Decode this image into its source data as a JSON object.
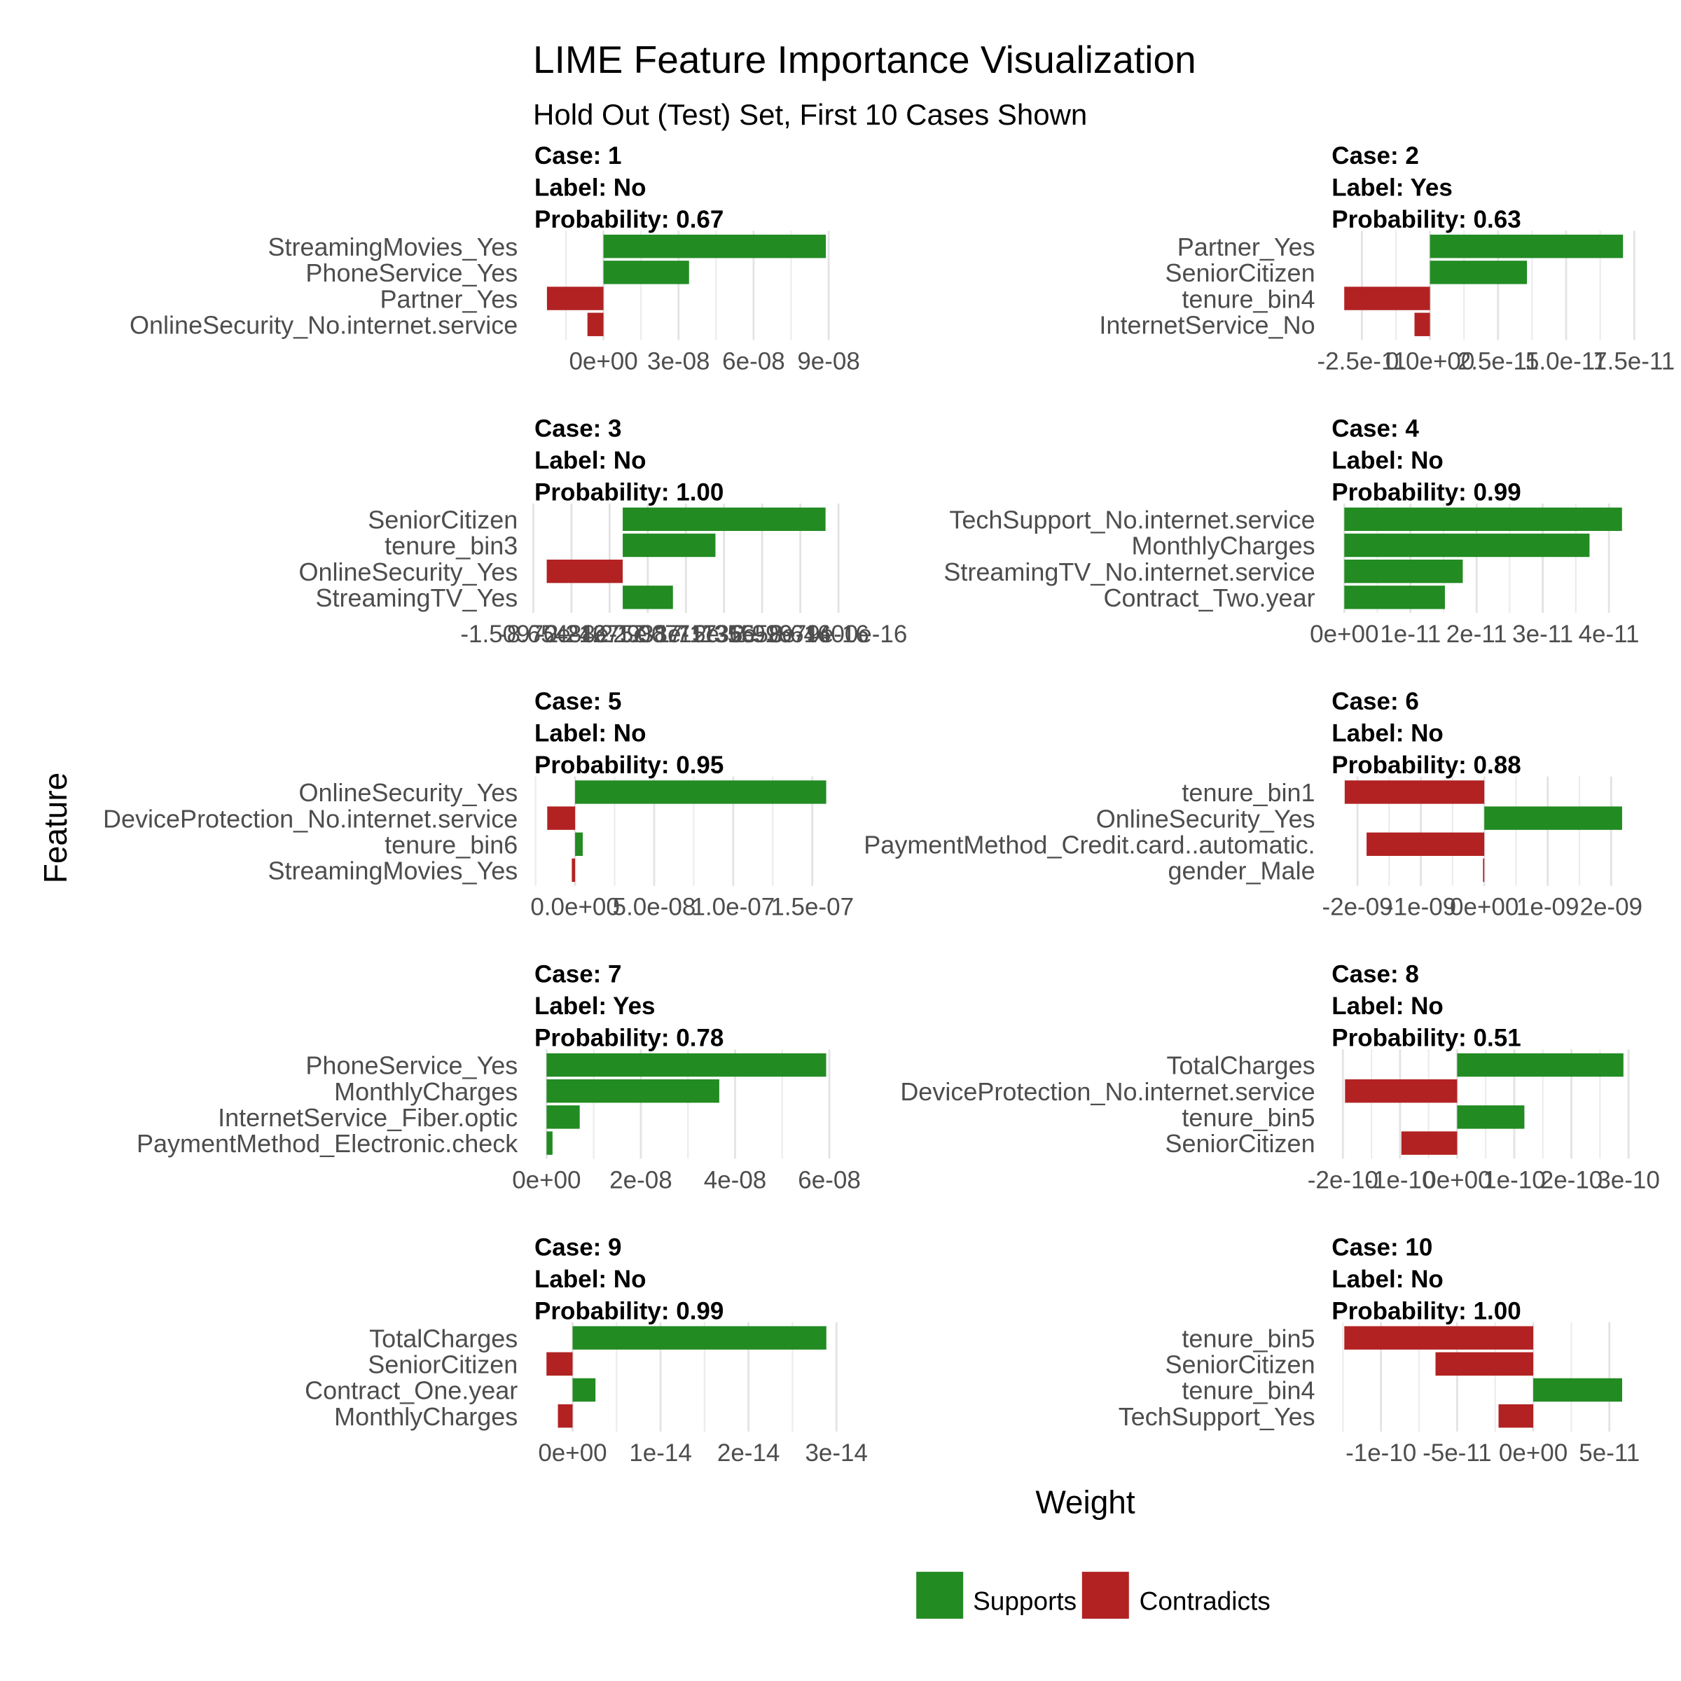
{
  "title": "LIME Feature Importance Visualization",
  "subtitle": "Hold Out (Test) Set, First 10 Cases Shown",
  "x_axis_title": "Weight",
  "y_axis_title": "Feature",
  "legend": {
    "items": [
      {
        "label": "Supports",
        "color": "#228B22"
      },
      {
        "label": "Contradicts",
        "color": "#B22222"
      }
    ]
  },
  "colors": {
    "supports": "#228B22",
    "contradicts": "#B22222",
    "grid_major": "#E3E3E3",
    "grid_minor": "#ECECEC",
    "axis_text": "#4D4D4D",
    "background": "#FFFFFF"
  },
  "chart_data": {
    "type": "bar",
    "orientation": "horizontal",
    "title": "LIME Feature Importance Visualization",
    "subtitle": "Hold Out (Test) Set, First 10 Cases Shown",
    "xlabel": "Weight",
    "ylabel": "Feature",
    "legend_position": "bottom",
    "grid": true,
    "facets": [
      {
        "case": "1",
        "label": "No",
        "probability": "0.67",
        "strip_lines": [
          "Case: 1",
          "Label: No",
          "Probability: 0.67"
        ],
        "features": [
          "StreamingMovies_Yes",
          "PhoneService_Yes",
          "Partner_Yes",
          "OnlineSecurity_No.internet.service"
        ],
        "weights": [
          8.888e-08,
          3.42e-08,
          -2.259e-08,
          -6.41e-09
        ],
        "supports": [
          true,
          true,
          false,
          false
        ],
        "xlim": [
          -2.816e-08,
          9.445e-08
        ],
        "major_breaks": [
          {
            "value": 0,
            "label": "0e+00"
          },
          {
            "value": 3e-08,
            "label": "3e-08"
          },
          {
            "value": 6e-08,
            "label": "6e-08"
          },
          {
            "value": 9e-08,
            "label": "9e-08"
          }
        ],
        "minor_breaks": [
          -1.5e-08,
          1.5e-08,
          4.5e-08,
          7.5e-08
        ]
      },
      {
        "case": "2",
        "label": "Yes",
        "probability": "0.63",
        "strip_lines": [
          "Case: 2",
          "Label: Yes",
          "Probability: 0.63"
        ],
        "features": [
          "Partner_Yes",
          "SeniorCitizen",
          "tenure_bin4",
          "InternetService_No"
        ],
        "weights": [
          7.088e-11,
          3.562e-11,
          -3.148e-11,
          -5.68e-12
        ],
        "supports": [
          true,
          true,
          false,
          false
        ],
        "xlim": [
          -3.66e-11,
          7.605e-11
        ],
        "major_breaks": [
          {
            "value": -2.5e-11,
            "label": "-2.5e-11"
          },
          {
            "value": 0,
            "label": "0.0e+00"
          },
          {
            "value": 2.5e-11,
            "label": "2.5e-11"
          },
          {
            "value": 5e-11,
            "label": "5.0e-11"
          },
          {
            "value": 7.5e-11,
            "label": "7.5e-11"
          }
        ],
        "minor_breaks": [
          -1.25e-11,
          1.25e-11,
          3.75e-11,
          6.25e-11
        ]
      },
      {
        "case": "3",
        "label": "No",
        "probability": "1.00",
        "strip_lines": [
          "Case: 3",
          "Label: No",
          "Probability: 1.00"
        ],
        "features": [
          "SeniorCitizen",
          "tenure_bin3",
          "OnlineSecurity_Yes",
          "StreamingTV_Yes"
        ],
        "weights": [
          3.426e-16,
          1.566e-16,
          -1.284e-16,
          8.48e-17
        ],
        "supports": [
          true,
          true,
          false,
          true
        ],
        "xlim": [
          -1.5155e-16,
          3.667e-16
        ],
        "major_breaks": [
          {
            "value": -1.5097e-16,
            "label": "-1.50970e-16"
          },
          {
            "value": -8.65488e-17,
            "label": "-8.65488e-17"
          },
          {
            "value": -2.21275e-17,
            "label": "-2.21275e-17"
          },
          {
            "value": 4.22938e-17,
            "label": "4.22938e-17"
          },
          {
            "value": 1.06715e-16,
            "label": "1.06715e-16"
          },
          {
            "value": 1.71136e-16,
            "label": "1.71136e-16"
          },
          {
            "value": 2.35558e-16,
            "label": "2.35558e-16"
          },
          {
            "value": 2.99979e-16,
            "label": "2.99979e-16"
          },
          {
            "value": 3.644e-16,
            "label": "3.64400e-16"
          }
        ],
        "minor_breaks": []
      },
      {
        "case": "4",
        "label": "No",
        "probability": "0.99",
        "strip_lines": [
          "Case: 4",
          "Label: No",
          "Probability: 0.99"
        ],
        "features": [
          "TechSupport_No.internet.service",
          "MonthlyCharges",
          "StreamingTV_No.internet.service",
          "Contract_Two.year"
        ],
        "weights": [
          4.198e-11,
          3.707e-11,
          1.791e-11,
          1.521e-11
        ],
        "supports": [
          true,
          true,
          true,
          true
        ],
        "xlim": [
          -2.117e-12,
          4.426e-11
        ],
        "major_breaks": [
          {
            "value": 0,
            "label": "0e+00"
          },
          {
            "value": 1e-11,
            "label": "1e-11"
          },
          {
            "value": 2e-11,
            "label": "2e-11"
          },
          {
            "value": 3e-11,
            "label": "3e-11"
          },
          {
            "value": 4e-11,
            "label": "4e-11"
          }
        ],
        "minor_breaks": [
          5e-12,
          1.5e-11,
          2.5e-11,
          3.5e-11
        ]
      },
      {
        "case": "5",
        "label": "No",
        "probability": "0.95",
        "strip_lines": [
          "Case: 5",
          "Label: No",
          "Probability: 0.95"
        ],
        "features": [
          "OnlineSecurity_Yes",
          "DeviceProtection_No.internet.service",
          "tenure_bin6",
          "StreamingMovies_Yes"
        ],
        "weights": [
          1.588e-07,
          -1.763e-08,
          4.83e-09,
          -2.08e-09
        ],
        "supports": [
          true,
          false,
          true,
          false
        ],
        "xlim": [
          -2.662e-08,
          1.674e-07
        ],
        "major_breaks": [
          {
            "value": 0,
            "label": "0.0e+00"
          },
          {
            "value": 5e-08,
            "label": "5.0e-08"
          },
          {
            "value": 1e-07,
            "label": "1.0e-07"
          },
          {
            "value": 1.5e-07,
            "label": "1.5e-07"
          }
        ],
        "minor_breaks": [
          -2.5e-08,
          2.5e-08,
          7.5e-08,
          1.25e-07
        ]
      },
      {
        "case": "6",
        "label": "No",
        "probability": "0.88",
        "strip_lines": [
          "Case: 6",
          "Label: No",
          "Probability: 0.88"
        ],
        "features": [
          "tenure_bin1",
          "OnlineSecurity_Yes",
          "PaymentMethod_Credit.card..automatic.",
          "gender_Male"
        ],
        "weights": [
          -2.201e-09,
          2.173e-09,
          -1.856e-09,
          -2e-11
        ],
        "supports": [
          false,
          true,
          false,
          false
        ],
        "xlim": [
          -2.428e-09,
          2.409e-09
        ],
        "major_breaks": [
          {
            "value": -2e-09,
            "label": "-2e-09"
          },
          {
            "value": -1e-09,
            "label": "-1e-09"
          },
          {
            "value": 0,
            "label": "0e+00"
          },
          {
            "value": 1e-09,
            "label": "1e-09"
          },
          {
            "value": 2e-09,
            "label": "2e-09"
          }
        ],
        "minor_breaks": [
          -1.5e-09,
          -5e-10,
          5e-10,
          1.5e-09
        ]
      },
      {
        "case": "7",
        "label": "Yes",
        "probability": "0.78",
        "strip_lines": [
          "Case: 7",
          "Label: Yes",
          "Probability: 0.78"
        ],
        "features": [
          "PhoneService_Yes",
          "MonthlyCharges",
          "InternetService_Fiber.optic",
          "PaymentMethod_Electronic.check"
        ],
        "weights": [
          5.933e-08,
          3.664e-08,
          7.03e-09,
          1.26e-09
        ],
        "supports": [
          true,
          true,
          true,
          true
        ],
        "xlim": [
          -2.88e-09,
          6.222e-08
        ],
        "major_breaks": [
          {
            "value": 0,
            "label": "0e+00"
          },
          {
            "value": 2e-08,
            "label": "2e-08"
          },
          {
            "value": 4e-08,
            "label": "4e-08"
          },
          {
            "value": 6e-08,
            "label": "6e-08"
          }
        ],
        "minor_breaks": [
          1e-08,
          3e-08,
          5e-08
        ]
      },
      {
        "case": "8",
        "label": "No",
        "probability": "0.51",
        "strip_lines": [
          "Case: 8",
          "Label: No",
          "Probability: 0.51"
        ],
        "features": [
          "TotalCharges",
          "DeviceProtection_No.internet.service",
          "tenure_bin5",
          "SeniorCitizen"
        ],
        "weights": [
          2.911e-10,
          -1.963e-10,
          1.177e-10,
          -9.77e-11
        ],
        "supports": [
          true,
          false,
          true,
          false
        ],
        "xlim": [
          -2.221e-10,
          3.15e-10
        ],
        "major_breaks": [
          {
            "value": -2e-10,
            "label": "-2e-10"
          },
          {
            "value": -1e-10,
            "label": "-1e-10"
          },
          {
            "value": 0,
            "label": "0e+00"
          },
          {
            "value": 1e-10,
            "label": "1e-10"
          },
          {
            "value": 2e-10,
            "label": "2e-10"
          },
          {
            "value": 3e-10,
            "label": "3e-10"
          }
        ],
        "minor_breaks": [
          -1.5e-10,
          -5e-11,
          5e-11,
          1.5e-10,
          2.5e-10
        ]
      },
      {
        "case": "9",
        "label": "No",
        "probability": "0.99",
        "strip_lines": [
          "Case: 9",
          "Label: No",
          "Probability: 0.99"
        ],
        "features": [
          "TotalCharges",
          "SeniorCitizen",
          "Contract_One.year",
          "MonthlyCharges"
        ],
        "weights": [
          2.885e-14,
          -2.97e-15,
          2.6e-15,
          -1.67e-15
        ],
        "supports": [
          true,
          false,
          true,
          false
        ],
        "xlim": [
          -4.5e-15,
          3.038e-14
        ],
        "major_breaks": [
          {
            "value": 0,
            "label": "0e+00"
          },
          {
            "value": 1e-14,
            "label": "1e-14"
          },
          {
            "value": 2e-14,
            "label": "2e-14"
          },
          {
            "value": 3e-14,
            "label": "3e-14"
          }
        ],
        "minor_breaks": [
          5e-15,
          1.5e-14,
          2.5e-14
        ]
      },
      {
        "case": "10",
        "label": "No",
        "probability": "1.00",
        "strip_lines": [
          "Case: 10",
          "Label: No",
          "Probability: 1.00"
        ],
        "features": [
          "tenure_bin5",
          "SeniorCitizen",
          "tenure_bin4",
          "TechSupport_Yes"
        ],
        "weights": [
          -1.241e-10,
          -6.42e-11,
          5.84e-11,
          -2.28e-11
        ],
        "supports": [
          false,
          false,
          true,
          false
        ],
        "xlim": [
          -1.333e-10,
          6.82e-11
        ],
        "major_breaks": [
          {
            "value": -1e-10,
            "label": "-1e-10"
          },
          {
            "value": -5e-11,
            "label": "-5e-11"
          },
          {
            "value": 0,
            "label": "0e+00"
          },
          {
            "value": 5e-11,
            "label": "5e-11"
          }
        ],
        "minor_breaks": [
          -1.25e-10,
          -7.5e-11,
          -2.5e-11,
          2.5e-11
        ]
      }
    ]
  }
}
